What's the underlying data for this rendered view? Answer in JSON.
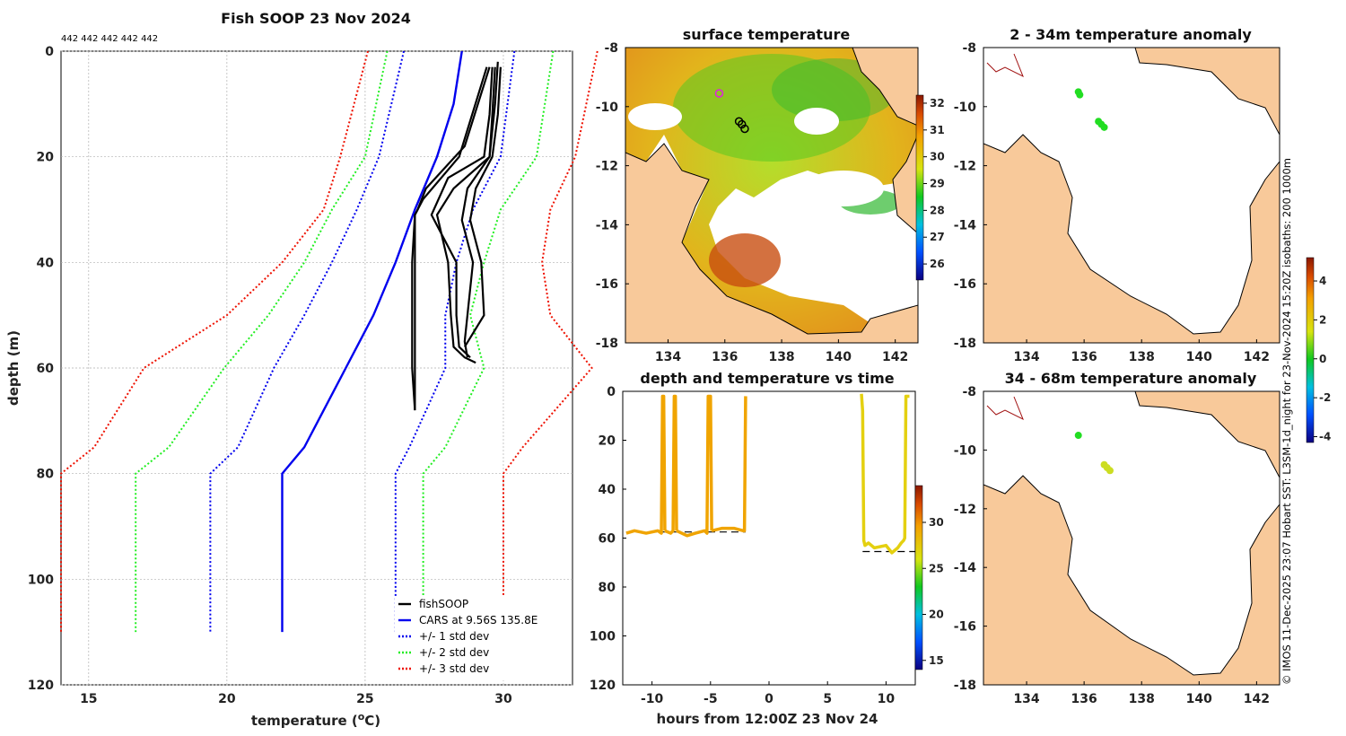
{
  "figure": {
    "side_caption": "© IMOS 11-Dec-2025 23:07 Hobart SST: L3SM-1d_night for 23-Nov-2024 15:20Z isobaths: 200  1000m",
    "colors": {
      "land": "#f8c99a",
      "coast": "#000000",
      "grid": "#b0b0b0"
    }
  },
  "chart_data": [
    {
      "id": "profile",
      "type": "line",
      "title": "Fish SOOP 23 Nov 2024",
      "annotation": "442 442 442 442 442",
      "xlabel": "temperature (",
      "xlabel_sup": "o",
      "xlabel_end": "C)",
      "ylabel": "depth (m)",
      "xlim": [
        14,
        32.5
      ],
      "ylim": [
        120,
        0
      ],
      "xticks": [
        15,
        20,
        25,
        30
      ],
      "yticks": [
        0,
        20,
        40,
        60,
        80,
        100,
        120
      ],
      "legend": [
        {
          "label": "fishSOOP",
          "color": "#000000",
          "style": "solid"
        },
        {
          "label": "CARS at 9.56S 135.8E",
          "color": "#0000ee",
          "style": "solid"
        },
        {
          "label": "+/- 1 std dev",
          "color": "#0000ee",
          "style": "dotted"
        },
        {
          "label": "+/- 2 std dev",
          "color": "#22ee22",
          "style": "dotted"
        },
        {
          "label": "+/- 3 std dev",
          "color": "#ee1100",
          "style": "dotted"
        }
      ],
      "series": [
        {
          "name": "CARS mean",
          "color": "#0000ee",
          "style": "solid",
          "depth": [
            0,
            10,
            20,
            30,
            40,
            50,
            60,
            70,
            75,
            80,
            110
          ],
          "temp": [
            28.5,
            28.2,
            27.6,
            26.8,
            26.1,
            25.3,
            24.3,
            23.3,
            22.8,
            22.0,
            22.0
          ]
        },
        {
          "name": "+1 std",
          "color": "#0000ee",
          "style": "dotted",
          "depth": [
            0,
            20,
            30,
            40,
            50,
            60,
            75,
            80,
            110
          ],
          "temp": [
            30.4,
            29.9,
            28.9,
            28.3,
            27.9,
            27.9,
            26.6,
            26.1,
            26.1
          ]
        },
        {
          "name": "-1 std",
          "color": "#0000ee",
          "style": "dotted",
          "depth": [
            0,
            20,
            30,
            40,
            50,
            60,
            75,
            80,
            110
          ],
          "temp": [
            26.4,
            25.5,
            24.7,
            23.8,
            22.8,
            21.7,
            20.4,
            19.4,
            19.4
          ]
        },
        {
          "name": "+2 std",
          "color": "#22ee22",
          "style": "dotted",
          "depth": [
            0,
            20,
            30,
            40,
            50,
            60,
            75,
            80,
            110
          ],
          "temp": [
            31.8,
            31.2,
            29.9,
            29.3,
            28.8,
            29.3,
            27.9,
            27.1,
            27.1
          ]
        },
        {
          "name": "-2 std",
          "color": "#22ee22",
          "style": "dotted",
          "depth": [
            0,
            20,
            30,
            40,
            50,
            60,
            75,
            80,
            110
          ],
          "temp": [
            25.8,
            25.0,
            23.8,
            22.8,
            21.5,
            19.9,
            17.9,
            16.7,
            16.7
          ]
        },
        {
          "name": "+3 std",
          "color": "#ee1100",
          "style": "dotted",
          "depth": [
            0,
            20,
            30,
            40,
            50,
            60,
            75,
            80,
            110
          ],
          "temp": [
            33.4,
            32.6,
            31.7,
            31.4,
            31.7,
            33.2,
            30.7,
            30.0,
            30.0
          ]
        },
        {
          "name": "-3 std",
          "color": "#ee1100",
          "style": "dotted",
          "depth": [
            0,
            20,
            30,
            40,
            50,
            60,
            75,
            80,
            110
          ],
          "temp": [
            25.1,
            24.1,
            23.5,
            22.0,
            20.0,
            17.0,
            15.2,
            14.0,
            14.0
          ]
        }
      ],
      "casts": [
        {
          "depth": [
            2,
            10,
            20,
            26,
            31,
            40,
            50,
            56,
            58,
            59
          ],
          "temp": [
            29.8,
            29.7,
            29.5,
            28.2,
            27.6,
            28.0,
            28.1,
            28.2,
            28.6,
            29.0
          ]
        },
        {
          "depth": [
            3,
            12,
            20,
            24,
            31,
            40,
            50,
            56,
            58
          ],
          "temp": [
            29.6,
            29.5,
            29.3,
            28.0,
            27.4,
            28.3,
            28.3,
            28.4,
            28.8
          ]
        },
        {
          "depth": [
            3,
            12,
            20,
            26,
            32,
            40,
            50,
            55,
            58
          ],
          "temp": [
            29.7,
            29.6,
            29.5,
            28.7,
            28.5,
            28.9,
            28.7,
            28.6,
            28.7
          ]
        },
        {
          "depth": [
            3,
            12,
            20,
            26,
            32,
            40,
            50,
            56
          ],
          "temp": [
            29.9,
            29.8,
            29.6,
            29.0,
            28.8,
            29.2,
            29.3,
            28.6
          ]
        },
        {
          "depth": [
            3,
            18,
            26,
            30,
            31,
            40,
            50,
            60,
            68
          ],
          "temp": [
            29.5,
            28.6,
            27.2,
            26.9,
            26.8,
            26.8,
            26.8,
            26.8,
            26.8
          ]
        },
        {
          "depth": [
            3,
            20,
            28,
            31,
            40,
            50,
            60,
            68
          ],
          "temp": [
            29.4,
            28.4,
            27.1,
            26.8,
            26.7,
            26.7,
            26.7,
            26.8
          ]
        }
      ]
    },
    {
      "id": "sst_map",
      "type": "heatmap",
      "title": "surface temperature",
      "xlim": [
        132.5,
        142.8
      ],
      "ylim": [
        -18,
        -8
      ],
      "xticks": [
        134,
        136,
        138,
        140,
        142
      ],
      "yticks": [
        -8,
        -10,
        -12,
        -14,
        -16,
        -18
      ],
      "colorbar": {
        "min": 25.4,
        "max": 32.3,
        "ticks": [
          26,
          27,
          28,
          29,
          30,
          31,
          32
        ]
      },
      "markers": {
        "lon": [
          135.8,
          136.5,
          136.6,
          136.7
        ],
        "lat": [
          -9.55,
          -10.5,
          -10.6,
          -10.75
        ]
      }
    },
    {
      "id": "anom_2_34",
      "type": "scatter",
      "title": "2 - 34m temperature anomaly",
      "xlim": [
        132.5,
        142.8
      ],
      "ylim": [
        -18,
        -8
      ],
      "xticks": [
        134,
        136,
        138,
        140,
        142
      ],
      "yticks": [
        -8,
        -10,
        -12,
        -14,
        -16,
        -18
      ],
      "points": [
        {
          "lon": 135.8,
          "lat": -9.5
        },
        {
          "lon": 135.85,
          "lat": -9.6
        },
        {
          "lon": 136.5,
          "lat": -10.5
        },
        {
          "lon": 136.6,
          "lat": -10.6
        },
        {
          "lon": 136.7,
          "lat": -10.7
        }
      ]
    },
    {
      "id": "anom_34_68",
      "type": "scatter",
      "title": "34 - 68m temperature anomaly",
      "xlim": [
        132.5,
        142.8
      ],
      "ylim": [
        -18,
        -8
      ],
      "xticks": [
        134,
        136,
        138,
        140,
        142
      ],
      "yticks": [
        -8,
        -10,
        -12,
        -14,
        -16,
        -18
      ],
      "points": [
        {
          "lon": 135.8,
          "lat": -9.5
        },
        {
          "lon": 136.7,
          "lat": -10.5
        },
        {
          "lon": 136.8,
          "lat": -10.6
        },
        {
          "lon": 136.9,
          "lat": -10.7
        }
      ]
    },
    {
      "id": "time_depth",
      "type": "scatter",
      "title": "depth and temperature vs time",
      "xlabel": "hours from 12:00Z 23 Nov 24",
      "xlim": [
        -12.5,
        12.5
      ],
      "ylim": [
        120,
        0
      ],
      "xticks": [
        -10,
        -5,
        0,
        5,
        10
      ],
      "yticks": [
        0,
        20,
        40,
        60,
        80,
        100,
        120
      ],
      "colorbar": {
        "min": 14,
        "max": 34,
        "ticks": [
          15,
          20,
          25,
          30
        ]
      },
      "bottom_ref": [
        {
          "t0": -12.2,
          "t1": -2.0,
          "depth": 57.5
        },
        {
          "t0": 8.0,
          "t1": 12.6,
          "depth": 65.5
        }
      ],
      "tracks": [
        {
          "t": [
            -12.2,
            -11.5,
            -10.5,
            -9.5,
            -9.2,
            -9.1,
            -9.0,
            -8.9
          ],
          "d": [
            58,
            57,
            58,
            57,
            58,
            2,
            2,
            57
          ]
        },
        {
          "t": [
            -8.9,
            -8.4,
            -8.2,
            -8.1,
            -8.0,
            -7.9
          ],
          "d": [
            57,
            58,
            57,
            2,
            2,
            57
          ]
        },
        {
          "t": [
            -7.9,
            -7.0,
            -6.3,
            -5.5,
            -5.3,
            -5.2,
            -5.1,
            -5.0,
            -4.9
          ],
          "d": [
            57,
            59,
            58,
            57,
            58,
            2,
            2,
            2,
            57
          ]
        },
        {
          "t": [
            -4.9,
            -4.0,
            -3.0,
            -2.2,
            -2.1,
            -2.0
          ],
          "d": [
            57,
            56,
            56,
            57,
            57,
            2
          ]
        },
        {
          "t": [
            7.9,
            8.0,
            8.1,
            8.2,
            8.5,
            9.0,
            10.0,
            10.5,
            11.0,
            11.3,
            11.5,
            11.6,
            11.7,
            11.8,
            12.0
          ],
          "d": [
            1,
            8,
            61,
            63,
            62,
            64,
            63,
            66,
            64,
            62,
            61,
            60,
            2,
            2,
            2
          ]
        }
      ]
    }
  ]
}
